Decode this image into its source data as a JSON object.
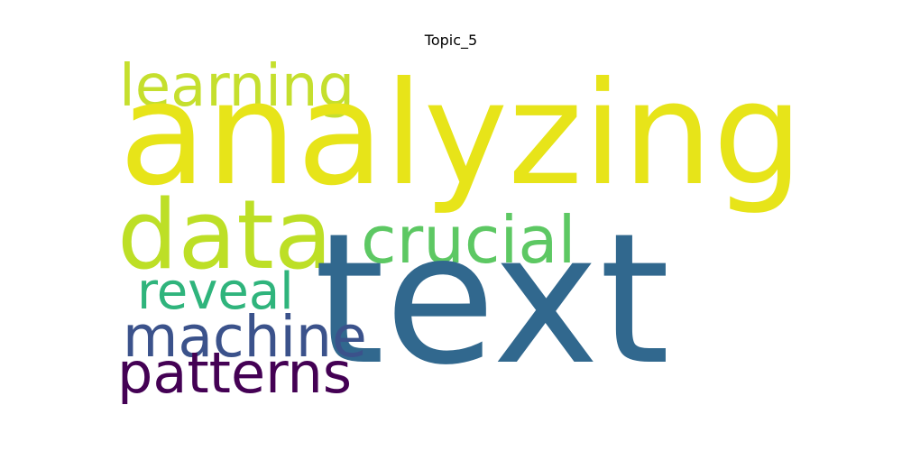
{
  "title": "Topic_5",
  "words": [
    {
      "key": "learning",
      "text": "learning",
      "color": "#c5df2e"
    },
    {
      "key": "analyzing",
      "text": "analyzing",
      "color": "#e7e419"
    },
    {
      "key": "data",
      "text": "data",
      "color": "#bddf26"
    },
    {
      "key": "crucial",
      "text": "crucial",
      "color": "#5dc863"
    },
    {
      "key": "reveal",
      "text": "reveal",
      "color": "#2fb47c"
    },
    {
      "key": "text",
      "text": "text",
      "color": "#31688e"
    },
    {
      "key": "machine",
      "text": "machine",
      "color": "#3b528b"
    },
    {
      "key": "patterns",
      "text": "patterns",
      "color": "#440154"
    }
  ]
}
